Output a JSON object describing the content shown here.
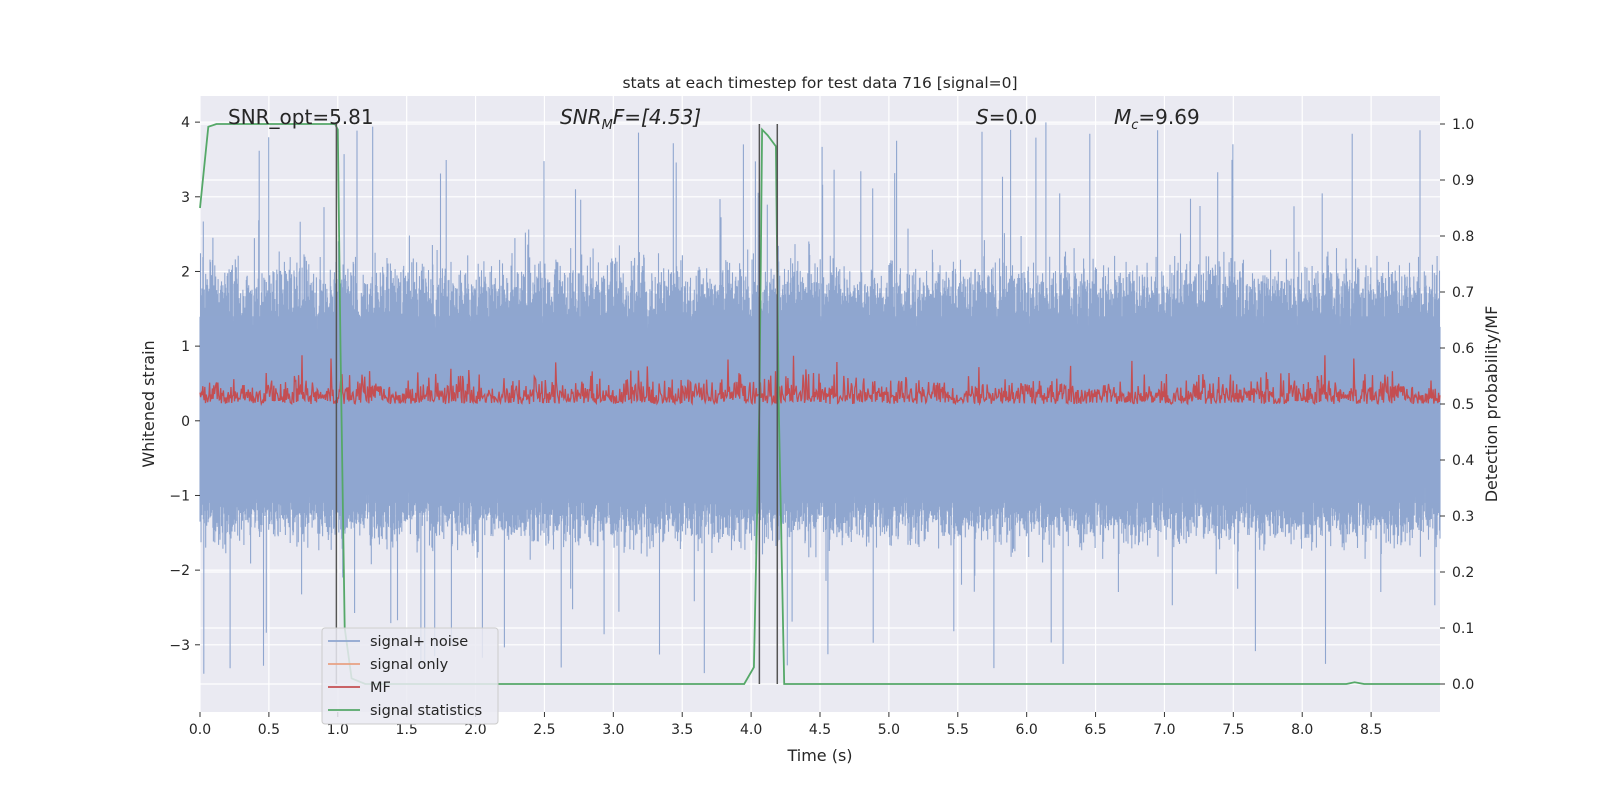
{
  "chart_data": {
    "type": "line",
    "title": "stats at each timestep for test data 716 [signal=0]",
    "xlabel": "Time (s)",
    "ylabel_left": "Whitened strain",
    "ylabel_right": "Detection probability/MF",
    "xlim": [
      0.0,
      9.0
    ],
    "ylim_left": [
      -3.9,
      4.35
    ],
    "ylim_right": [
      -0.05,
      1.05
    ],
    "x_ticks": [
      "0.0",
      "0.5",
      "1.0",
      "1.5",
      "2.0",
      "2.5",
      "3.0",
      "3.5",
      "4.0",
      "4.5",
      "5.0",
      "5.5",
      "6.0",
      "6.5",
      "7.0",
      "7.5",
      "8.0",
      "8.5"
    ],
    "y_ticks_left": [
      "4",
      "3",
      "2",
      "1",
      "0",
      "−1",
      "−2",
      "−3"
    ],
    "y_ticks_left_values": [
      4,
      3,
      2,
      1,
      0,
      -1,
      -2,
      -3
    ],
    "y_ticks_right": [
      "1.0",
      "0.9",
      "0.8",
      "0.7",
      "0.6",
      "0.5",
      "0.4",
      "0.3",
      "0.2",
      "0.1",
      "0.0"
    ],
    "y_ticks_right_values": [
      1.0,
      0.9,
      0.8,
      0.7,
      0.6,
      0.5,
      0.4,
      0.3,
      0.2,
      0.1,
      0.0
    ],
    "grid": true,
    "legend_position": "lower-left",
    "annotations": {
      "snr_opt": "SNR_opt=5.81",
      "snr_mf_main": "SNR",
      "snr_mf_sub": "M",
      "snr_mf_tail": "F=[4.53]",
      "s_main": "S",
      "s_tail": "=0.0",
      "mc_main": "M",
      "mc_sub": "c",
      "mc_tail": "=9.69"
    },
    "colors": {
      "signal_noise": "#8fa6cf",
      "signal_only": "#e8a183",
      "mf": "#c44e52",
      "signal_statistics": "#55a868",
      "vline": "#555555",
      "background": "#eaeaf2",
      "grid": "#ffffff"
    },
    "series": [
      {
        "name": "signal+ noise",
        "axis": "left",
        "description_envelope": {
          "core_range": [
            -1.3,
            1.7
          ],
          "peak_range": [
            -3.4,
            4.0
          ]
        }
      },
      {
        "name": "signal only",
        "axis": "left",
        "values": []
      },
      {
        "name": "MF",
        "axis": "right",
        "baseline": 0.5,
        "range": [
          0.49,
          0.6
        ]
      },
      {
        "name": "signal statistics",
        "axis": "right",
        "x": [
          0.0,
          0.06,
          0.12,
          0.2,
          0.5,
          0.98,
          1.0,
          1.02,
          1.05,
          1.1,
          1.2,
          2.0,
          3.0,
          3.95,
          4.02,
          4.06,
          4.08,
          4.12,
          4.18,
          4.2,
          4.24,
          4.3,
          5.0,
          6.0,
          7.0,
          8.0,
          8.32,
          8.38,
          8.45,
          9.0
        ],
        "values": [
          0.85,
          0.995,
          1.0,
          1.0,
          1.0,
          1.0,
          0.99,
          0.6,
          0.1,
          0.01,
          0.0,
          0.0,
          0.0,
          0.0,
          0.03,
          0.5,
          0.99,
          0.98,
          0.96,
          0.5,
          0.0,
          0.0,
          0.0,
          0.0,
          0.0,
          0.0,
          0.0,
          0.003,
          0.0,
          0.0
        ]
      }
    ],
    "vertical_lines_x": [
      0.99,
      4.06,
      4.19
    ]
  }
}
